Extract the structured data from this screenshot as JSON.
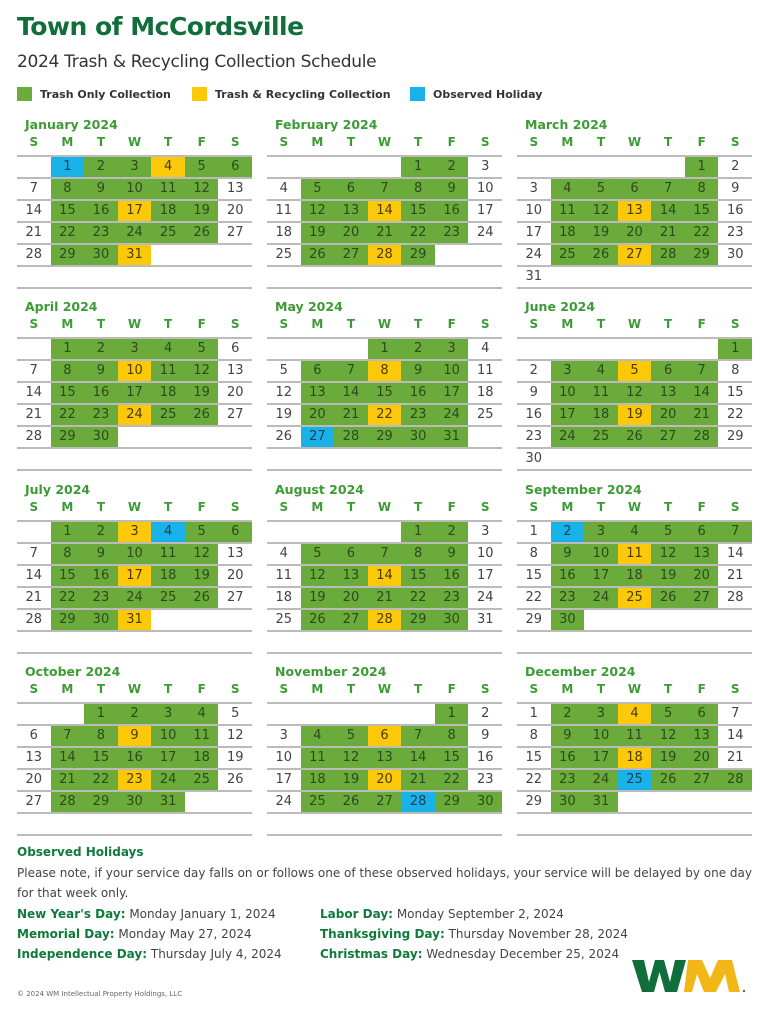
{
  "header": {
    "title": "Town of McCordsville",
    "subtitle": "2024 Trash & Recycling Collection Schedule"
  },
  "legend": [
    {
      "label": "Trash Only Collection",
      "color": "#6aab3c"
    },
    {
      "label": "Trash & Recycling Collection",
      "color": "#fcc90a"
    },
    {
      "label": "Observed Holiday",
      "color": "#19b2e8"
    }
  ],
  "weekdays": [
    "S",
    "M",
    "T",
    "W",
    "T",
    "F",
    "S"
  ],
  "months": [
    {
      "name": "January 2024",
      "first_weekday": 1,
      "days": 31,
      "recycling": [
        4,
        17,
        31
      ],
      "holidays": [
        1
      ],
      "extra_trash": [
        6
      ]
    },
    {
      "name": "February 2024",
      "first_weekday": 4,
      "days": 29,
      "recycling": [
        14,
        28
      ],
      "holidays": [],
      "extra_trash": []
    },
    {
      "name": "March 2024",
      "first_weekday": 5,
      "days": 31,
      "recycling": [
        13,
        27
      ],
      "holidays": [],
      "extra_trash": []
    },
    {
      "name": "April 2024",
      "first_weekday": 1,
      "days": 30,
      "recycling": [
        10,
        24
      ],
      "holidays": [],
      "extra_trash": []
    },
    {
      "name": "May 2024",
      "first_weekday": 3,
      "days": 31,
      "recycling": [
        8,
        22
      ],
      "holidays": [
        27
      ],
      "extra_trash": []
    },
    {
      "name": "June 2024",
      "first_weekday": 6,
      "days": 30,
      "recycling": [
        5,
        19
      ],
      "holidays": [],
      "extra_trash": [
        1
      ]
    },
    {
      "name": "July 2024",
      "first_weekday": 1,
      "days": 31,
      "recycling": [
        3,
        17,
        31
      ],
      "holidays": [
        4
      ],
      "extra_trash": [
        6
      ]
    },
    {
      "name": "August 2024",
      "first_weekday": 4,
      "days": 31,
      "recycling": [
        14,
        28
      ],
      "holidays": [],
      "extra_trash": []
    },
    {
      "name": "September 2024",
      "first_weekday": 0,
      "days": 30,
      "recycling": [
        11,
        25
      ],
      "holidays": [
        2
      ],
      "extra_trash": [
        7
      ]
    },
    {
      "name": "October 2024",
      "first_weekday": 2,
      "days": 31,
      "recycling": [
        9,
        23
      ],
      "holidays": [],
      "extra_trash": []
    },
    {
      "name": "November 2024",
      "first_weekday": 5,
      "days": 30,
      "recycling": [
        6,
        20
      ],
      "holidays": [
        28
      ],
      "extra_trash": [
        30
      ]
    },
    {
      "name": "December 2024",
      "first_weekday": 0,
      "days": 31,
      "recycling": [
        4,
        18
      ],
      "holidays": [
        25
      ],
      "extra_trash": [
        28
      ]
    }
  ],
  "notes": {
    "heading": "Observed Holidays",
    "text": "Please note, if your service day falls on or follows one of these observed holidays, your service will be delayed by one day for that week only.",
    "holidays": [
      {
        "name": "New Year's Day:",
        "date": "Monday January 1, 2024"
      },
      {
        "name": "Memorial Day:",
        "date": "Monday May 27, 2024"
      },
      {
        "name": "Independence Day:",
        "date": "Thursday July 4, 2024"
      },
      {
        "name": "Labor Day:",
        "date": "Monday September 2, 2024"
      },
      {
        "name": "Thanksgiving Day:",
        "date": "Thursday November 28, 2024"
      },
      {
        "name": "Christmas Day:",
        "date": "Wednesday December 25, 2024"
      }
    ]
  },
  "footer": {
    "copyright": "© 2024 WM Intellectual Property Holdings, LLC",
    "logo_text": "WM"
  }
}
